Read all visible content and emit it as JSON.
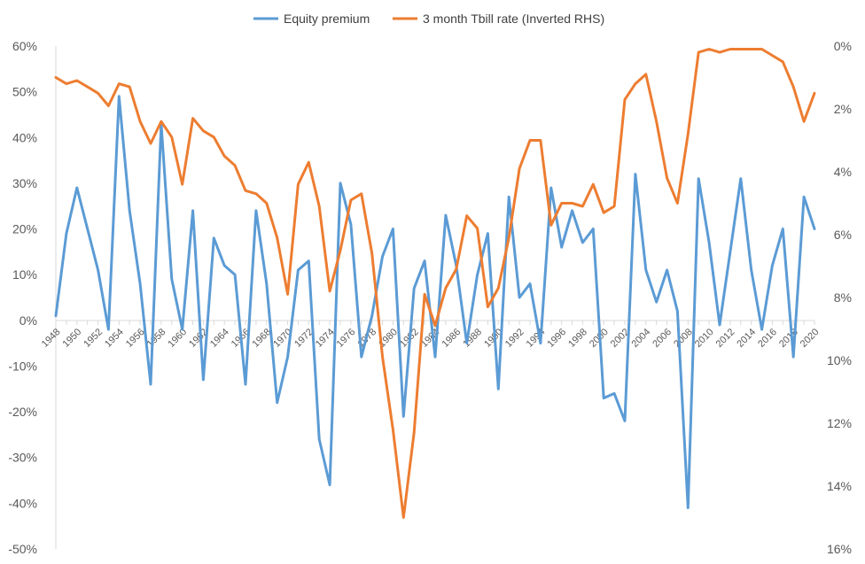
{
  "chart_data": {
    "type": "line",
    "title": "",
    "xlabel": "",
    "ylabel": "",
    "legend_position": "top",
    "grid": false,
    "x": [
      1948,
      1949,
      1950,
      1951,
      1952,
      1953,
      1954,
      1955,
      1956,
      1957,
      1958,
      1959,
      1960,
      1961,
      1962,
      1963,
      1964,
      1965,
      1966,
      1967,
      1968,
      1969,
      1970,
      1971,
      1972,
      1973,
      1974,
      1975,
      1976,
      1977,
      1978,
      1979,
      1980,
      1981,
      1982,
      1983,
      1984,
      1985,
      1986,
      1987,
      1988,
      1989,
      1990,
      1991,
      1992,
      1993,
      1994,
      1995,
      1996,
      1997,
      1998,
      1999,
      2000,
      2001,
      2002,
      2003,
      2004,
      2005,
      2006,
      2007,
      2008,
      2009,
      2010,
      2011,
      2012,
      2013,
      2014,
      2015,
      2016,
      2017,
      2018,
      2019,
      2020
    ],
    "x_tick_labels": [
      "1948",
      "1950",
      "1952",
      "1954",
      "1956",
      "1958",
      "1960",
      "1962",
      "1964",
      "1966",
      "1968",
      "1970",
      "1972",
      "1974",
      "1976",
      "1978",
      "1980",
      "1982",
      "1984",
      "1986",
      "1988",
      "1990",
      "1992",
      "1994",
      "1996",
      "1998",
      "2000",
      "2002",
      "2004",
      "2006",
      "2008",
      "2010",
      "2012",
      "2014",
      "2016",
      "2018",
      "2020"
    ],
    "y_left": {
      "min": -0.5,
      "max": 0.6,
      "ticks": [
        0.6,
        0.5,
        0.4,
        0.3,
        0.2,
        0.1,
        0,
        -0.1,
        -0.2,
        -0.3,
        -0.4,
        -0.5
      ],
      "tick_labels": [
        "60%",
        "50%",
        "40%",
        "30%",
        "20%",
        "10%",
        "0%",
        "-10%",
        "-20%",
        "-30%",
        "-40%",
        "-50%"
      ]
    },
    "y_right": {
      "min": 0,
      "max": 0.16,
      "inverted": true,
      "ticks": [
        0,
        0.02,
        0.04,
        0.06,
        0.08,
        0.1,
        0.12,
        0.14,
        0.16
      ],
      "tick_labels": [
        "0%",
        "2%",
        "4%",
        "6%",
        "8%",
        "10%",
        "12%",
        "14%",
        "16%"
      ]
    },
    "series": [
      {
        "name": "Equity premium",
        "axis": "left",
        "color": "#5B9BD5",
        "values": [
          0.01,
          0.19,
          0.29,
          0.2,
          0.11,
          -0.02,
          0.49,
          0.24,
          0.08,
          -0.14,
          0.43,
          0.09,
          -0.02,
          0.24,
          -0.13,
          0.18,
          0.12,
          0.1,
          -0.14,
          0.24,
          0.08,
          -0.18,
          -0.08,
          0.11,
          0.13,
          -0.26,
          -0.36,
          0.3,
          0.21,
          -0.08,
          0.01,
          0.14,
          0.2,
          -0.21,
          0.07,
          0.13,
          -0.08,
          0.23,
          0.12,
          -0.05,
          0.1,
          0.19,
          -0.15,
          0.27,
          0.05,
          0.08,
          -0.05,
          0.29,
          0.16,
          0.24,
          0.17,
          0.2,
          -0.17,
          -0.16,
          -0.22,
          0.32,
          0.11,
          0.04,
          0.11,
          0.02,
          -0.41,
          0.31,
          0.17,
          -0.01,
          0.15,
          0.31,
          0.11,
          -0.02,
          0.12,
          0.2,
          -0.08,
          0.27,
          0.2
        ]
      },
      {
        "name": "3 month Tbill rate (Inverted RHS)",
        "axis": "right",
        "color": "#ED7D31",
        "values": [
          0.01,
          0.012,
          0.011,
          0.013,
          0.015,
          0.019,
          0.012,
          0.013,
          0.024,
          0.031,
          0.024,
          0.029,
          0.044,
          0.023,
          0.027,
          0.029,
          0.035,
          0.038,
          0.046,
          0.047,
          0.05,
          0.061,
          0.079,
          0.044,
          0.037,
          0.051,
          0.078,
          0.065,
          0.049,
          0.047,
          0.066,
          0.099,
          0.122,
          0.15,
          0.123,
          0.079,
          0.089,
          0.077,
          0.071,
          0.054,
          0.058,
          0.083,
          0.077,
          0.061,
          0.039,
          0.03,
          0.03,
          0.057,
          0.05,
          0.05,
          0.051,
          0.044,
          0.053,
          0.051,
          0.017,
          0.012,
          0.009,
          0.024,
          0.042,
          0.05,
          0.028,
          0.002,
          0.001,
          0.002,
          0.001,
          0.001,
          0.001,
          0.001,
          0.003,
          0.005,
          0.013,
          0.024,
          0.015
        ]
      }
    ]
  }
}
